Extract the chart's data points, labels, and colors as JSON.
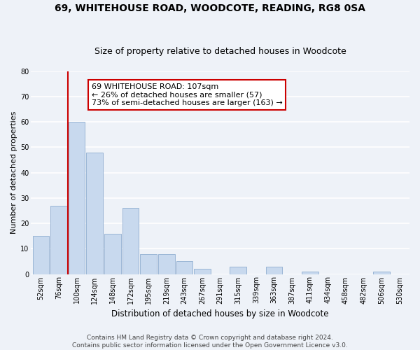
{
  "title": "69, WHITEHOUSE ROAD, WOODCOTE, READING, RG8 0SA",
  "subtitle": "Size of property relative to detached houses in Woodcote",
  "xlabel": "Distribution of detached houses by size in Woodcote",
  "ylabel": "Number of detached properties",
  "bar_color": "#c8d9ee",
  "bar_edge_color": "#9ab5d5",
  "background_color": "#eef2f8",
  "grid_color": "#ffffff",
  "bin_labels": [
    "52sqm",
    "76sqm",
    "100sqm",
    "124sqm",
    "148sqm",
    "172sqm",
    "195sqm",
    "219sqm",
    "243sqm",
    "267sqm",
    "291sqm",
    "315sqm",
    "339sqm",
    "363sqm",
    "387sqm",
    "411sqm",
    "434sqm",
    "458sqm",
    "482sqm",
    "506sqm",
    "530sqm"
  ],
  "bar_heights": [
    15,
    27,
    60,
    48,
    16,
    26,
    8,
    8,
    5,
    2,
    0,
    3,
    0,
    3,
    0,
    1,
    0,
    0,
    0,
    1,
    0
  ],
  "ylim": [
    0,
    80
  ],
  "yticks": [
    0,
    10,
    20,
    30,
    40,
    50,
    60,
    70,
    80
  ],
  "vline_color": "#cc0000",
  "annotation_text": "69 WHITEHOUSE ROAD: 107sqm\n← 26% of detached houses are smaller (57)\n73% of semi-detached houses are larger (163) →",
  "footnote": "Contains HM Land Registry data © Crown copyright and database right 2024.\nContains public sector information licensed under the Open Government Licence v3.0.",
  "title_fontsize": 10,
  "subtitle_fontsize": 9,
  "xlabel_fontsize": 8.5,
  "ylabel_fontsize": 8,
  "tick_fontsize": 7,
  "annotation_fontsize": 8,
  "footnote_fontsize": 6.5
}
